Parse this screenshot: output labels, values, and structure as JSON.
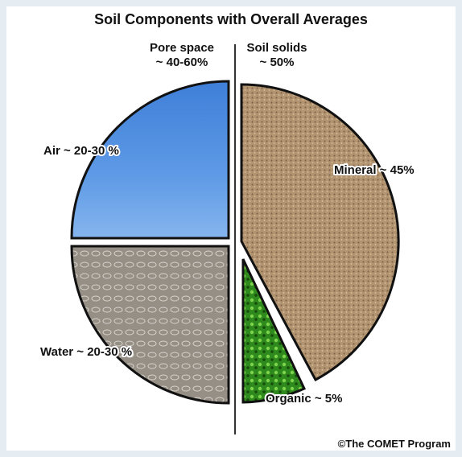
{
  "title": "Soil Components with Overall Averages",
  "groups": [
    {
      "name": "Pore space",
      "share": "~ 40-60%"
    },
    {
      "name": "Soil solids",
      "share": "~ 50%"
    }
  ],
  "components": [
    {
      "label": "Air ~ 20-30 %"
    },
    {
      "label": "Water ~ 20-30 %"
    },
    {
      "label": "Mineral ~ 45%"
    },
    {
      "label": "Organic ~ 5%"
    }
  ],
  "credit": "©The COMET Program"
}
